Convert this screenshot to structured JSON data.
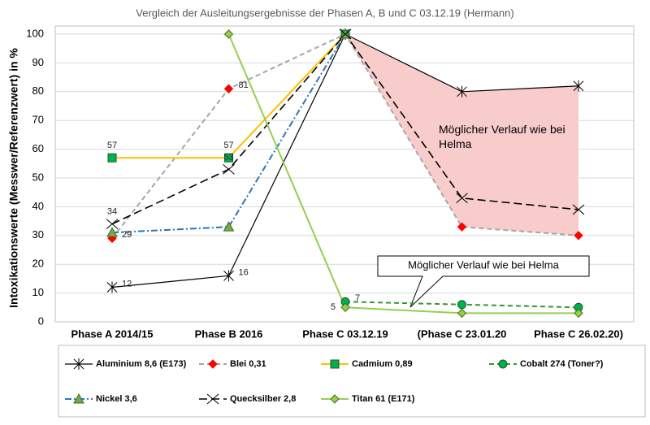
{
  "chart_data": {
    "type": "line",
    "title": "Vergleich der Ausleitungsergebnisse der Phasen A, B und C 03.12.19 (Hermann)",
    "y_label": "Intoxikationswerte (Messwer/Referenzwert) in %",
    "categories": [
      "Phase A 2014/15",
      "Phase B 2016",
      "Phase C 03.12.19",
      "(Phase C 23.01.20",
      "Phase C 26.02.20)"
    ],
    "ylim": [
      0,
      100
    ],
    "yticks": [
      0,
      10,
      20,
      30,
      40,
      50,
      60,
      70,
      80,
      90,
      100
    ],
    "grid": true,
    "legend": "bottom",
    "band_color": "#f9cccc",
    "annotations": [
      "Möglicher Verlauf wie bei Helma",
      "Möglicher Verlauf wie bei Helma"
    ],
    "series": [
      {
        "name": "Aluminium 8,6 (E173)",
        "color": "#000000",
        "marker": "star",
        "marker_color": "#000000",
        "dash": "",
        "width": 1.2,
        "values": [
          12,
          16,
          100,
          80,
          82
        ],
        "data_labels": [
          0,
          1
        ],
        "label_position": "right"
      },
      {
        "name": "Blei 0,31",
        "color": "#a6a6a6",
        "marker": "diamond",
        "marker_color": "#ff0000",
        "dash": "6 4",
        "width": 2,
        "values": [
          29,
          81,
          100,
          33,
          30
        ],
        "data_labels": [
          0,
          1
        ],
        "label_position": "right"
      },
      {
        "name": "Cadmium 0,89",
        "color": "#ffc000",
        "marker": "square",
        "marker_color": "#00b050",
        "dash": "",
        "width": 2,
        "values": [
          57,
          57,
          100,
          null,
          null
        ],
        "data_labels": [
          0,
          1
        ],
        "label_position": "above"
      },
      {
        "name": "Cobalt 274 (Toner?)",
        "color": "#339933",
        "marker": "circle",
        "marker_color": "#00b050",
        "dash": "6 4",
        "width": 2,
        "values": [
          null,
          null,
          7,
          6,
          5
        ],
        "data_labels": [
          2
        ],
        "label_position": "right"
      },
      {
        "name": "Nickel 3,6",
        "color": "#2e75b6",
        "marker": "triangle",
        "marker_color": "#70ad47",
        "dash": "8 3 2 3",
        "width": 2,
        "values": [
          31,
          33,
          100,
          null,
          null
        ],
        "data_labels": [],
        "label_position": "right"
      },
      {
        "name": "Quecksilber 2,8",
        "color": "#000000",
        "marker": "x",
        "marker_color": "#000000",
        "dash": "10 5",
        "width": 1.6,
        "values": [
          34,
          53,
          100,
          43,
          39
        ],
        "data_labels": [
          0,
          1
        ],
        "label_position": "above"
      },
      {
        "name": "Titan 61 (E171)",
        "color": "#92d050",
        "marker": "diamond",
        "marker_color": "#92d050",
        "dash": "",
        "width": 2,
        "values": [
          null,
          100,
          5,
          3,
          3
        ],
        "data_labels": [
          2
        ],
        "label_position": "left"
      }
    ]
  }
}
